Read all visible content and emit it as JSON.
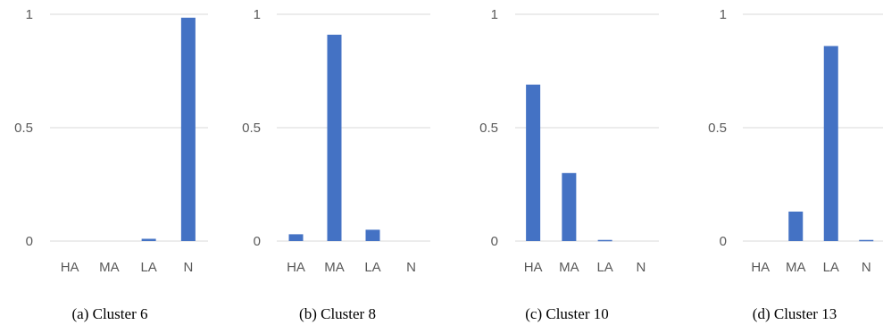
{
  "colors": {
    "bar": "#4472C4",
    "grid": "#d9d9d9",
    "text": "#595959"
  },
  "chart_data": [
    {
      "type": "bar",
      "caption": "(a) Cluster 6",
      "categories": [
        "HA",
        "MA",
        "LA",
        "N"
      ],
      "values": [
        0.0,
        0.0,
        0.01,
        0.985
      ],
      "ylim": [
        0,
        1
      ],
      "yticks": [
        "0",
        "0.5",
        "1"
      ],
      "grid": true
    },
    {
      "type": "bar",
      "caption": "(b) Cluster 8",
      "categories": [
        "HA",
        "MA",
        "LA",
        "N"
      ],
      "values": [
        0.03,
        0.91,
        0.05,
        0.0
      ],
      "ylim": [
        0,
        1
      ],
      "yticks": [
        "0",
        "0.5",
        "1"
      ],
      "grid": true
    },
    {
      "type": "bar",
      "caption": "(c) Cluster 10",
      "categories": [
        "HA",
        "MA",
        "LA",
        "N"
      ],
      "values": [
        0.69,
        0.3,
        0.005,
        0.0
      ],
      "ylim": [
        0,
        1
      ],
      "yticks": [
        "0",
        "0.5",
        "1"
      ],
      "grid": true
    },
    {
      "type": "bar",
      "caption": "(d) Cluster 13",
      "categories": [
        "HA",
        "MA",
        "LA",
        "N"
      ],
      "values": [
        0.0,
        0.13,
        0.86,
        0.005
      ],
      "ylim": [
        0,
        1
      ],
      "yticks": [
        "0",
        "0.5",
        "1"
      ],
      "grid": true
    }
  ]
}
